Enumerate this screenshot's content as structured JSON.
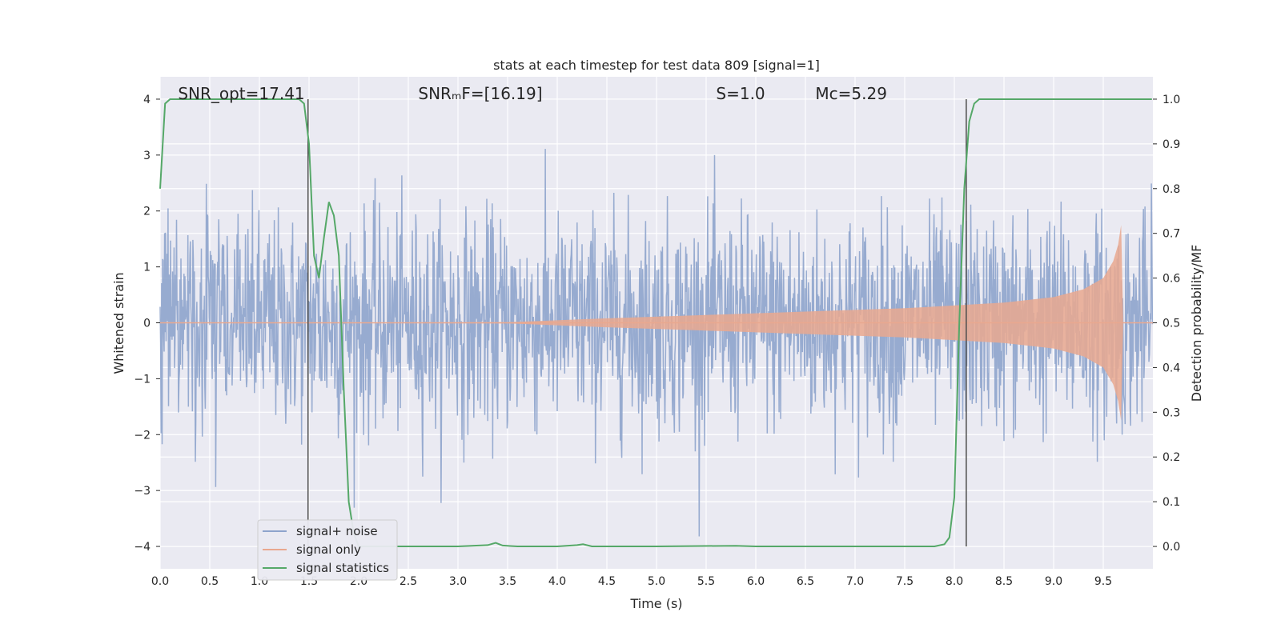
{
  "chart_data": {
    "type": "line",
    "title": "stats at each timestep for test data 809 [signal=1]",
    "xlabel": "Time (s)",
    "ylabel_left": "Whitened strain",
    "ylabel_right": "Detection probability/MF",
    "xlim": [
      0,
      10
    ],
    "ylim_left": [
      -4.4,
      4.4
    ],
    "ylim_right": [
      -0.05,
      1.05
    ],
    "x_ticks": [
      0.0,
      0.5,
      1.0,
      1.5,
      2.0,
      2.5,
      3.0,
      3.5,
      4.0,
      4.5,
      5.0,
      5.5,
      6.0,
      6.5,
      7.0,
      7.5,
      8.0,
      8.5,
      9.0,
      9.5
    ],
    "x_tick_labels": [
      "0.0",
      "0.5",
      "1.0",
      "1.5",
      "2.0",
      "2.5",
      "3.0",
      "3.5",
      "4.0",
      "4.5",
      "5.0",
      "5.5",
      "6.0",
      "6.5",
      "7.0",
      "7.5",
      "8.0",
      "8.5",
      "9.0",
      "9.5"
    ],
    "y_left_ticks": [
      4,
      3,
      2,
      1,
      0,
      -1,
      -2,
      -3,
      -4
    ],
    "y_left_tick_labels": [
      "4",
      "3",
      "2",
      "1",
      "0",
      "−1",
      "−2",
      "−3",
      "−4"
    ],
    "y_right_ticks": [
      1.0,
      0.9,
      0.8,
      0.7,
      0.6,
      0.5,
      0.4,
      0.3,
      0.2,
      0.1,
      0.0
    ],
    "y_right_tick_labels": [
      "1.0",
      "0.9",
      "0.8",
      "0.7",
      "0.6",
      "0.5",
      "0.4",
      "0.3",
      "0.2",
      "0.1",
      "0.0"
    ],
    "grid": true,
    "legend_position": "lower-left",
    "annotations": [
      {
        "text": "SNR_opt=17.41",
        "x": 0.18
      },
      {
        "text": "SNRₘF=[16.19]",
        "x": 2.6
      },
      {
        "text": "S=1.0",
        "x": 5.6
      },
      {
        "text": "Mᴄ=5.29",
        "x": 6.6
      }
    ],
    "vertical_lines": [
      1.49,
      8.12
    ],
    "series": [
      {
        "name": "signal+ noise",
        "color": "#8ea4cc",
        "axis": "left",
        "description_values": {
          "typical_band": [
            -2.0,
            2.0
          ],
          "peak_max": 3.8,
          "peak_min": -4.0
        }
      },
      {
        "name": "signal only",
        "color": "#e9a88f",
        "axis": "left",
        "envelope": {
          "x": [
            0.0,
            3.5,
            4.5,
            5.5,
            6.5,
            7.5,
            8.5,
            9.0,
            9.3,
            9.5,
            9.6,
            9.65,
            9.68,
            9.7
          ],
          "amplitude": [
            0.0,
            0.01,
            0.08,
            0.14,
            0.2,
            0.26,
            0.36,
            0.46,
            0.6,
            0.8,
            1.1,
            1.4,
            1.75,
            0.1
          ]
        }
      },
      {
        "name": "signal statistics",
        "color": "#55a868",
        "axis": "right",
        "x": [
          0.0,
          0.05,
          0.1,
          0.3,
          0.6,
          1.0,
          1.2,
          1.4,
          1.45,
          1.5,
          1.55,
          1.6,
          1.65,
          1.7,
          1.75,
          1.8,
          1.85,
          1.9,
          1.95,
          2.0,
          2.05,
          2.1,
          2.5,
          3.0,
          3.3,
          3.38,
          3.45,
          3.6,
          4.0,
          4.2,
          4.26,
          4.35,
          5.0,
          5.8,
          6.0,
          7.0,
          7.8,
          7.9,
          7.95,
          8.0,
          8.05,
          8.1,
          8.15,
          8.2,
          8.25,
          9.0,
          9.99
        ],
        "y": [
          0.8,
          0.99,
          1.0,
          1.0,
          1.0,
          1.0,
          1.0,
          1.0,
          0.99,
          0.9,
          0.65,
          0.6,
          0.69,
          0.77,
          0.74,
          0.65,
          0.35,
          0.1,
          0.03,
          0.0,
          0.0,
          0.0,
          0.0,
          0.0,
          0.003,
          0.008,
          0.002,
          0.0,
          0.0,
          0.003,
          0.005,
          0.0,
          0.0,
          0.0015,
          0.0,
          0.0,
          0.0,
          0.005,
          0.02,
          0.11,
          0.5,
          0.8,
          0.95,
          0.99,
          1.0,
          1.0,
          1.0
        ]
      }
    ]
  }
}
